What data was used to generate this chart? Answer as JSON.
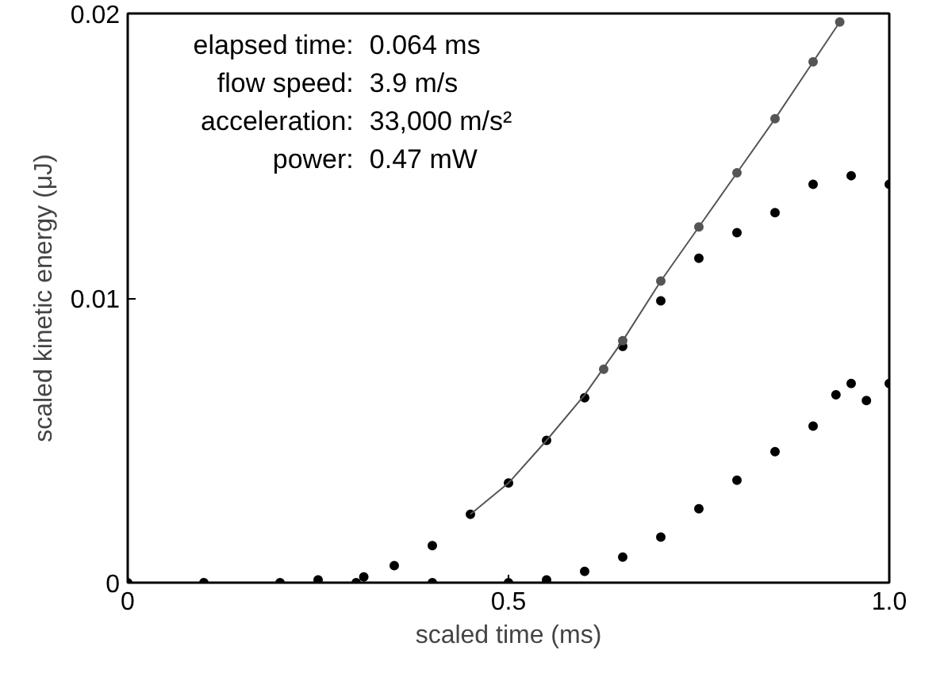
{
  "chart_data": {
    "type": "scatter",
    "xlabel": "scaled time (ms)",
    "ylabel": "scaled kinetic energy (μJ)",
    "xlim": [
      0,
      1.0
    ],
    "ylim": [
      0,
      0.02
    ],
    "xticks": [
      0,
      0.5,
      {
        "value": 1.0,
        "label": "1.0"
      }
    ],
    "yticks": [
      0,
      0.01,
      0.02
    ],
    "grid": false,
    "annotations": [
      "elapsed time: 0.064 ms",
      "flow speed: 3.9 m/s",
      "acceleration: 33,000 m/s²",
      "power: 0.47 mW"
    ],
    "series": [
      {
        "marker": "circle",
        "color": "#000000",
        "x": [
          0,
          0.1,
          0.2,
          0.25,
          0.31,
          0.35,
          0.4,
          0.45,
          0.5,
          0.55,
          0.6,
          0.65,
          0.7,
          0.75,
          0.8,
          0.85,
          0.9,
          0.95,
          1.0
        ],
        "values": [
          0,
          0,
          0,
          0.0001,
          0.0002,
          0.0006,
          0.0013,
          0.0024,
          0.0035,
          0.005,
          0.0065,
          0.0083,
          0.0099,
          0.0114,
          0.0123,
          0.013,
          0.014,
          0.0143,
          0.014
        ]
      },
      {
        "marker": "circle",
        "color": "#555555",
        "x": [
          0.625,
          0.65,
          0.7,
          0.75,
          0.8,
          0.85,
          0.9,
          0.935
        ],
        "values": [
          0.0075,
          0.0085,
          0.0106,
          0.0125,
          0.0144,
          0.0163,
          0.0183,
          0.0197
        ]
      },
      {
        "type": "line",
        "marker": "none",
        "color": "#555555",
        "x": [
          0.45,
          0.5,
          0.55,
          0.6,
          0.65,
          0.7,
          0.75,
          0.8,
          0.85,
          0.9,
          0.935
        ],
        "values": [
          0.0024,
          0.0035,
          0.005,
          0.0066,
          0.0085,
          0.0106,
          0.0125,
          0.0144,
          0.0163,
          0.0183,
          0.0197
        ]
      },
      {
        "marker": "circle",
        "color": "#000000",
        "x": [
          0.3,
          0.4,
          0.5,
          0.55,
          0.6,
          0.65,
          0.7,
          0.75,
          0.8,
          0.85,
          0.9,
          0.93,
          0.95,
          0.97,
          1.0
        ],
        "values": [
          0,
          0,
          0,
          0.0001,
          0.0004,
          0.0009,
          0.0016,
          0.0026,
          0.0036,
          0.0046,
          0.0055,
          0.0066,
          0.007,
          0.0064,
          0.007
        ]
      }
    ]
  }
}
